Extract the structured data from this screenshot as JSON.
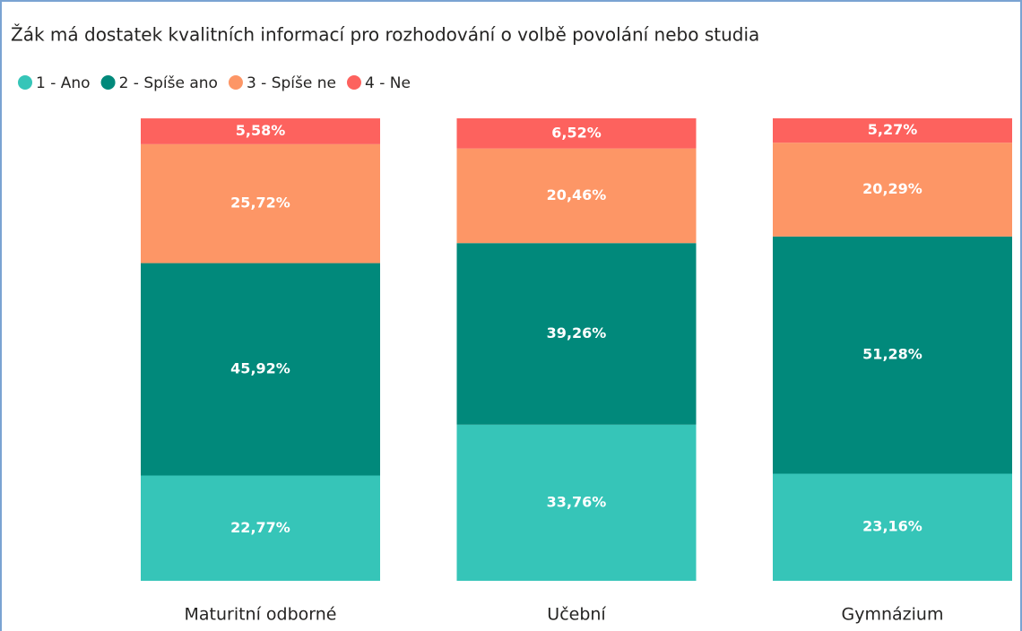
{
  "chart_data": {
    "type": "stacked_bar_100",
    "title": "Žák má dostatek kvalitních informací pro rozhodování o volbě povolání nebo studia",
    "categories": [
      "Maturitní odborné",
      "Učební",
      "Gymnázium"
    ],
    "ylim": [
      0,
      100
    ],
    "series": [
      {
        "name": "1 - Ano",
        "color": "#36c5b8",
        "values": [
          22.77,
          33.76,
          23.16
        ],
        "value_labels": [
          "22,77%",
          "33,76%",
          "23,16%"
        ]
      },
      {
        "name": "2 - Spíše ano",
        "color": "#01897b",
        "values": [
          45.92,
          39.26,
          51.28
        ],
        "value_labels": [
          "45,92%",
          "39,26%",
          "51,28%"
        ]
      },
      {
        "name": "3 - Spíše ne",
        "color": "#fd9666",
        "values": [
          25.72,
          20.46,
          20.29
        ],
        "value_labels": [
          "25,72%",
          "20,46%",
          "20,29%"
        ]
      },
      {
        "name": "4 - Ne",
        "color": "#fd625e",
        "values": [
          5.58,
          6.52,
          5.27
        ],
        "value_labels": [
          "5,58%",
          "6,52%",
          "5,27%"
        ]
      }
    ],
    "legend": "top-left"
  }
}
